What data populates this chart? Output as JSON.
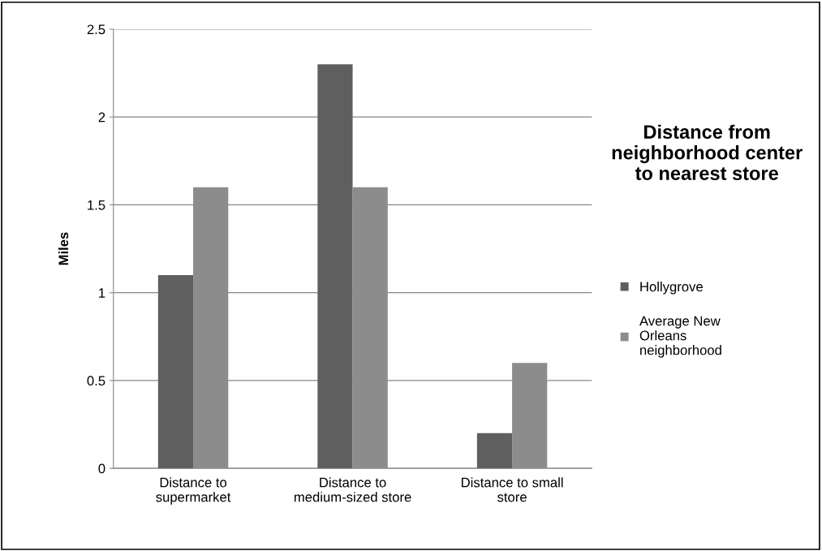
{
  "chart_data": {
    "type": "bar",
    "title": "Distance from\nneighborhood center\nto nearest store",
    "ylabel": "Miles",
    "categories": [
      "Distance to\nsupermarket",
      "Distance to\nmedium-sized store",
      "Distance to small\nstore"
    ],
    "series": [
      {
        "name": "Hollygrove",
        "color": "#5f5f5f",
        "values": [
          1.1,
          2.3,
          0.2
        ]
      },
      {
        "name": "Average New\nOrleans\nneighborhood",
        "color": "#8c8c8c",
        "values": [
          1.6,
          1.6,
          0.6
        ]
      }
    ],
    "ylim": [
      0,
      2.5
    ],
    "yticks": [
      0,
      0.5,
      1,
      1.5,
      2,
      2.5
    ],
    "grid": "y",
    "legend": "right"
  }
}
